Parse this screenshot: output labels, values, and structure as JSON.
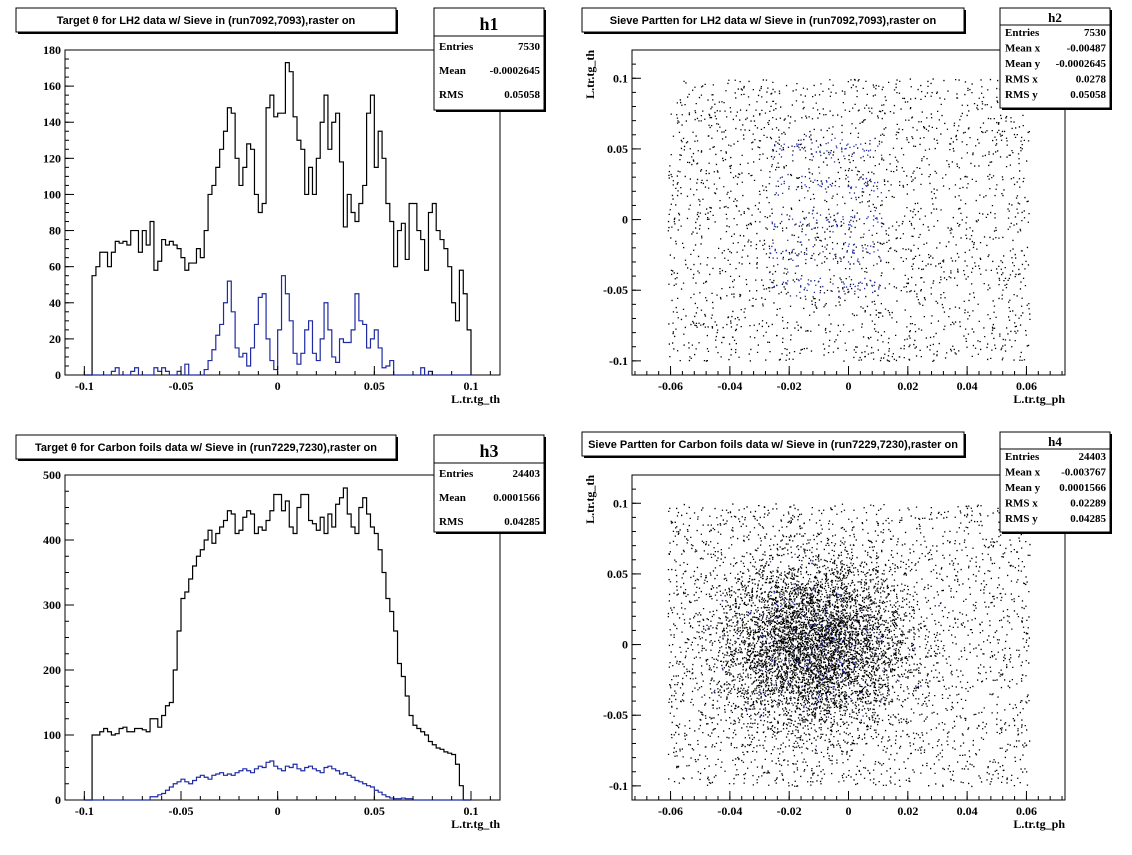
{
  "chart_data": [
    {
      "id": "h1",
      "type": "histogram",
      "title": "Target θ for LH2 data w/ Sieve in (run7092,7093),raster on",
      "xlabel": "L.tr.tg_th",
      "ylabel": "",
      "xlim": [
        -0.11,
        0.115
      ],
      "ylim": [
        0,
        180
      ],
      "xticks": [
        -0.1,
        -0.05,
        0,
        0.05,
        0.1
      ],
      "xtick_labels": [
        "-0.1",
        "-0.05",
        "0",
        "0.05",
        "0.1"
      ],
      "yticks": [
        0,
        20,
        40,
        60,
        80,
        100,
        120,
        140,
        160,
        180
      ],
      "ytick_labels": [
        "0",
        "20",
        "40",
        "60",
        "80",
        "100",
        "120",
        "140",
        "160",
        "180"
      ],
      "bins": {
        "start": -0.1,
        "width": 0.002
      },
      "series": [
        {
          "color": "#000000",
          "values": [
            0,
            0,
            55,
            60,
            68,
            68,
            60,
            68,
            74,
            73,
            74,
            72,
            80,
            80,
            68,
            80,
            72,
            85,
            58,
            63,
            75,
            72,
            74,
            72,
            70,
            65,
            58,
            62,
            62,
            70,
            65,
            80,
            100,
            105,
            115,
            125,
            135,
            148,
            145,
            120,
            105,
            115,
            128,
            125,
            100,
            90,
            95,
            148,
            155,
            143,
            145,
            145,
            173,
            168,
            143,
            130,
            125,
            100,
            115,
            100,
            120,
            140,
            155,
            125,
            140,
            145,
            118,
            82,
            100,
            90,
            85,
            95,
            105,
            145,
            155,
            115,
            135,
            120,
            95,
            85,
            60,
            80,
            84,
            64,
            95,
            95,
            80,
            75,
            58,
            90,
            95,
            80,
            75,
            70,
            60,
            40,
            30,
            58,
            45,
            25
          ]
        },
        {
          "color": "#1f2aa3",
          "values": [
            0,
            0,
            0,
            0,
            0,
            0,
            0,
            2,
            4,
            0,
            0,
            0,
            2,
            4,
            0,
            0,
            0,
            0,
            4,
            2,
            4,
            2,
            0,
            0,
            2,
            0,
            6,
            0,
            0,
            0,
            0,
            3,
            8,
            14,
            22,
            28,
            40,
            52,
            35,
            15,
            10,
            12,
            5,
            15,
            28,
            43,
            45,
            20,
            8,
            3,
            25,
            55,
            45,
            30,
            12,
            6,
            12,
            25,
            30,
            12,
            8,
            20,
            40,
            25,
            10,
            7,
            20,
            18,
            18,
            25,
            45,
            30,
            28,
            15,
            20,
            25,
            15,
            4,
            5,
            8,
            0,
            0,
            0,
            0,
            0,
            0,
            0,
            4,
            0,
            2,
            0,
            0,
            0,
            0,
            0,
            0,
            0,
            0,
            0,
            0
          ]
        }
      ],
      "stats": {
        "name": "h1",
        "rows": [
          [
            "Entries",
            "7530"
          ],
          [
            "Mean",
            "-0.0002645"
          ],
          [
            "RMS",
            "0.05058"
          ]
        ]
      }
    },
    {
      "id": "h2",
      "type": "scatter",
      "title": "Sieve Partten for LH2 data w/ Sieve in (run7092,7093),raster on",
      "xlabel": "L.tr.tg_ph",
      "ylabel": "L.tr.tg_th",
      "xlim": [
        -0.073,
        0.073
      ],
      "ylim": [
        -0.11,
        0.12
      ],
      "xticks": [
        -0.06,
        -0.04,
        -0.02,
        0,
        0.02,
        0.04,
        0.06
      ],
      "xtick_labels": [
        "-0.06",
        "-0.04",
        "-0.02",
        "0",
        "0.02",
        "0.04",
        "0.06"
      ],
      "yticks": [
        -0.1,
        -0.05,
        0,
        0.05,
        0.1
      ],
      "ytick_labels": [
        "-0.1",
        "-0.05",
        "0",
        "0.05",
        "0.1"
      ],
      "density": "sparse",
      "point_region": {
        "x": [
          -0.061,
          0.061
        ],
        "y": [
          -0.1,
          0.1
        ]
      },
      "sieve_holes_y": [
        0.05,
        0.025,
        0,
        -0.022,
        -0.045
      ],
      "stats": {
        "name": "h2",
        "rows": [
          [
            "Entries",
            "7530"
          ],
          [
            "Mean x",
            "-0.00487"
          ],
          [
            "Mean y",
            "-0.0002645"
          ],
          [
            "RMS x",
            "0.0278"
          ],
          [
            "RMS y",
            "0.05058"
          ]
        ]
      }
    },
    {
      "id": "h3",
      "type": "histogram",
      "title": "Target θ for Carbon foils data w/ Sieve in (run7229,7230),raster on",
      "xlabel": "L.tr.tg_th",
      "ylabel": "",
      "xlim": [
        -0.11,
        0.115
      ],
      "ylim": [
        0,
        500
      ],
      "xticks": [
        -0.1,
        -0.05,
        0,
        0.05,
        0.1
      ],
      "xtick_labels": [
        "-0.1",
        "-0.05",
        "0",
        "0.05",
        "0.1"
      ],
      "yticks": [
        0,
        100,
        200,
        300,
        400,
        500
      ],
      "ytick_labels": [
        "0",
        "100",
        "200",
        "300",
        "400",
        "500"
      ],
      "bins": {
        "start": -0.1,
        "width": 0.002
      },
      "series": [
        {
          "color": "#000000",
          "values": [
            0,
            0,
            100,
            100,
            105,
            110,
            105,
            100,
            102,
            110,
            112,
            105,
            105,
            110,
            110,
            108,
            105,
            125,
            125,
            112,
            130,
            145,
            150,
            200,
            260,
            310,
            320,
            340,
            360,
            375,
            385,
            400,
            415,
            395,
            410,
            420,
            430,
            445,
            440,
            410,
            415,
            435,
            445,
            440,
            410,
            420,
            415,
            430,
            445,
            470,
            470,
            445,
            460,
            420,
            410,
            450,
            470,
            470,
            430,
            425,
            415,
            435,
            410,
            440,
            420,
            455,
            465,
            480,
            440,
            420,
            410,
            450,
            465,
            440,
            420,
            410,
            385,
            350,
            310,
            290,
            260,
            210,
            190,
            160,
            130,
            115,
            110,
            105,
            100,
            90,
            85,
            80,
            78,
            74,
            72,
            70,
            55,
            22,
            0,
            0
          ]
        },
        {
          "color": "#1f2aa3",
          "values": [
            0,
            0,
            0,
            0,
            0,
            0,
            0,
            0,
            0,
            0,
            0,
            0,
            0,
            0,
            0,
            0,
            0,
            5,
            5,
            8,
            10,
            15,
            20,
            25,
            28,
            32,
            28,
            25,
            30,
            35,
            38,
            35,
            32,
            38,
            40,
            42,
            38,
            40,
            38,
            42,
            45,
            48,
            45,
            42,
            48,
            52,
            50,
            58,
            60,
            52,
            48,
            45,
            52,
            50,
            55,
            48,
            45,
            50,
            52,
            48,
            45,
            42,
            50,
            52,
            48,
            45,
            40,
            42,
            38,
            35,
            30,
            28,
            25,
            22,
            20,
            15,
            12,
            8,
            5,
            3,
            2,
            2,
            3,
            2,
            2,
            0,
            0,
            0,
            0,
            0,
            0,
            0,
            0,
            0,
            0,
            0,
            0,
            0,
            0,
            0
          ]
        }
      ],
      "stats": {
        "name": "h3",
        "rows": [
          [
            "Entries",
            "24403"
          ],
          [
            "Mean",
            "0.0001566"
          ],
          [
            "RMS",
            "0.04285"
          ]
        ]
      }
    },
    {
      "id": "h4",
      "type": "scatter",
      "title": "Sieve Partten for Carbon foils data w/ Sieve in (run7229,7230),raster on",
      "xlabel": "L.tr.tg_ph",
      "ylabel": "L.tr.tg_th",
      "xlim": [
        -0.073,
        0.073
      ],
      "ylim": [
        -0.11,
        0.12
      ],
      "xticks": [
        -0.06,
        -0.04,
        -0.02,
        0,
        0.02,
        0.04,
        0.06
      ],
      "xtick_labels": [
        "-0.06",
        "-0.04",
        "-0.02",
        "0",
        "0.02",
        "0.04",
        "0.06"
      ],
      "yticks": [
        -0.1,
        -0.05,
        0,
        0.05,
        0.1
      ],
      "ytick_labels": [
        "-0.1",
        "-0.05",
        "0",
        "0.05",
        "0.1"
      ],
      "density": "dense",
      "point_region": {
        "x": [
          -0.061,
          0.061
        ],
        "y": [
          -0.1,
          0.1
        ]
      },
      "stats": {
        "name": "h4",
        "rows": [
          [
            "Entries",
            "24403"
          ],
          [
            "Mean x",
            "-0.003767"
          ],
          [
            "Mean y",
            "0.0001566"
          ],
          [
            "RMS x",
            "0.02289"
          ],
          [
            "RMS y",
            "0.04285"
          ]
        ]
      }
    }
  ]
}
